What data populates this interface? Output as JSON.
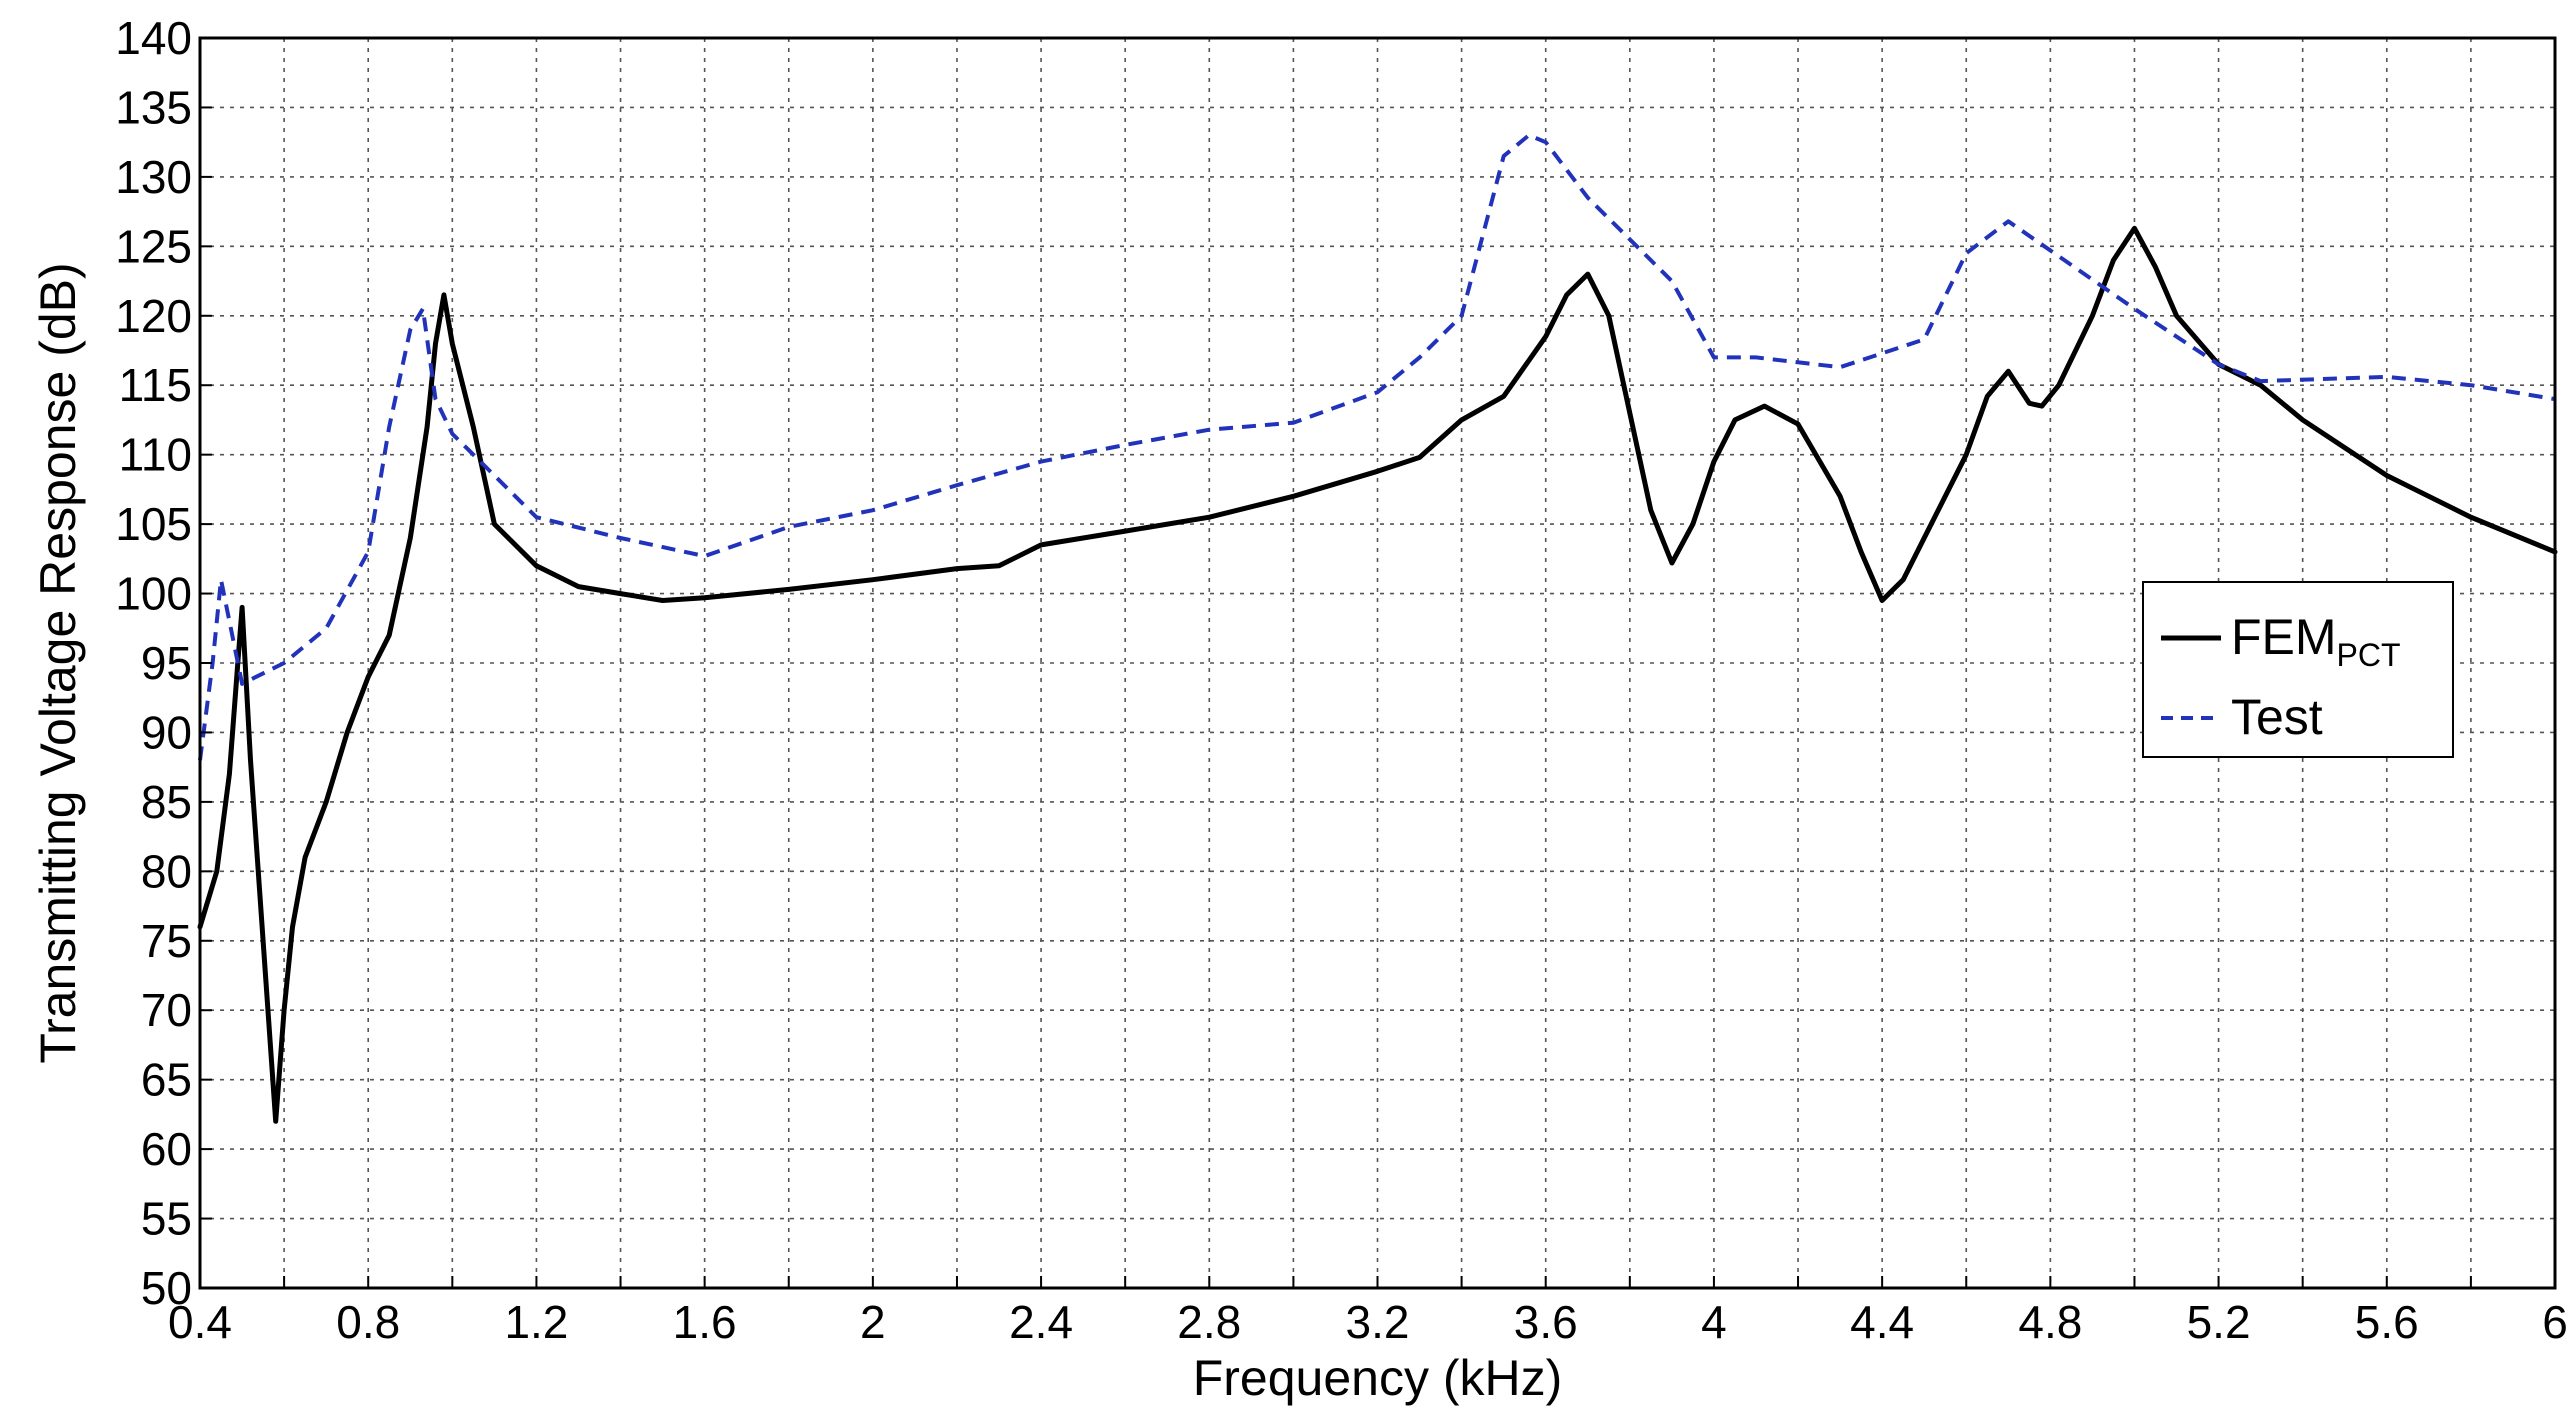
{
  "chart_data": {
    "type": "line",
    "title": "",
    "xlabel": "Frequency  (kHz)",
    "ylabel": "Transmitting Voltage Response  (dB)",
    "xlim": [
      0.4,
      6
    ],
    "ylim": [
      50,
      140
    ],
    "x_ticks": [
      0.4,
      0.8,
      1.2,
      1.6,
      2,
      2.4,
      2.8,
      3.2,
      3.6,
      4,
      4.4,
      4.8,
      5.2,
      5.6,
      6
    ],
    "x_tick_labels": [
      "0.4",
      "0.8",
      "1.2",
      "1.6",
      "2",
      "2.4",
      "2.8",
      "3.2",
      "3.6",
      "4",
      "4.4",
      "4.8",
      "5.2",
      "5.6",
      "6"
    ],
    "x_minor_step": 0.2,
    "y_ticks": [
      50,
      55,
      60,
      65,
      70,
      75,
      80,
      85,
      90,
      95,
      100,
      105,
      110,
      115,
      120,
      125,
      130,
      135,
      140
    ],
    "y_tick_labels": [
      "50",
      "55",
      "60",
      "65",
      "70",
      "75",
      "80",
      "85",
      "90",
      "95",
      "100",
      "105",
      "110",
      "115",
      "120",
      "125",
      "130",
      "135",
      "140"
    ],
    "grid": true,
    "legend_position": "right",
    "series": [
      {
        "name": "FEM",
        "name_subscript": "PCT",
        "color": "#000000",
        "style": "solid",
        "points": [
          [
            0.4,
            76
          ],
          [
            0.44,
            80
          ],
          [
            0.47,
            87
          ],
          [
            0.49,
            95
          ],
          [
            0.5,
            99
          ],
          [
            0.52,
            88
          ],
          [
            0.55,
            75
          ],
          [
            0.58,
            62
          ],
          [
            0.6,
            70
          ],
          [
            0.62,
            76
          ],
          [
            0.65,
            81
          ],
          [
            0.7,
            85
          ],
          [
            0.75,
            90
          ],
          [
            0.8,
            94
          ],
          [
            0.85,
            97
          ],
          [
            0.9,
            104
          ],
          [
            0.94,
            112
          ],
          [
            0.96,
            118
          ],
          [
            0.98,
            121.5
          ],
          [
            1.0,
            118
          ],
          [
            1.05,
            112
          ],
          [
            1.1,
            105
          ],
          [
            1.2,
            102
          ],
          [
            1.3,
            100.5
          ],
          [
            1.4,
            100
          ],
          [
            1.5,
            99.5
          ],
          [
            1.6,
            99.7
          ],
          [
            1.8,
            100.3
          ],
          [
            2.0,
            101
          ],
          [
            2.2,
            101.8
          ],
          [
            2.3,
            102
          ],
          [
            2.4,
            103.5
          ],
          [
            2.6,
            104.5
          ],
          [
            2.8,
            105.5
          ],
          [
            3.0,
            107
          ],
          [
            3.2,
            108.8
          ],
          [
            3.3,
            109.8
          ],
          [
            3.4,
            112.5
          ],
          [
            3.5,
            114.2
          ],
          [
            3.6,
            118.5
          ],
          [
            3.65,
            121.5
          ],
          [
            3.7,
            123
          ],
          [
            3.75,
            120
          ],
          [
            3.8,
            113
          ],
          [
            3.85,
            106
          ],
          [
            3.9,
            102.2
          ],
          [
            3.95,
            105
          ],
          [
            4.0,
            109.5
          ],
          [
            4.05,
            112.5
          ],
          [
            4.12,
            113.5
          ],
          [
            4.2,
            112.2
          ],
          [
            4.3,
            107
          ],
          [
            4.35,
            103
          ],
          [
            4.4,
            99.5
          ],
          [
            4.45,
            101
          ],
          [
            4.5,
            104
          ],
          [
            4.6,
            110
          ],
          [
            4.65,
            114.2
          ],
          [
            4.7,
            116
          ],
          [
            4.75,
            113.7
          ],
          [
            4.78,
            113.5
          ],
          [
            4.82,
            115
          ],
          [
            4.9,
            120
          ],
          [
            4.95,
            124
          ],
          [
            5.0,
            126.3
          ],
          [
            5.05,
            123.5
          ],
          [
            5.1,
            120
          ],
          [
            5.2,
            116.5
          ],
          [
            5.3,
            115
          ],
          [
            5.4,
            112.5
          ],
          [
            5.6,
            108.5
          ],
          [
            5.8,
            105.5
          ],
          [
            6.0,
            103
          ]
        ]
      },
      {
        "name": "Test",
        "color": "#2233bb",
        "style": "dashed",
        "points": [
          [
            0.4,
            88
          ],
          [
            0.43,
            95
          ],
          [
            0.45,
            101
          ],
          [
            0.5,
            93.5
          ],
          [
            0.6,
            95
          ],
          [
            0.7,
            97.5
          ],
          [
            0.8,
            103
          ],
          [
            0.85,
            112
          ],
          [
            0.9,
            119
          ],
          [
            0.93,
            120.5
          ],
          [
            0.96,
            114
          ],
          [
            1.0,
            111.5
          ],
          [
            1.1,
            108.5
          ],
          [
            1.2,
            105.5
          ],
          [
            1.4,
            104
          ],
          [
            1.6,
            102.7
          ],
          [
            1.8,
            104.8
          ],
          [
            2.0,
            106
          ],
          [
            2.2,
            107.8
          ],
          [
            2.4,
            109.5
          ],
          [
            2.6,
            110.7
          ],
          [
            2.8,
            111.8
          ],
          [
            3.0,
            112.3
          ],
          [
            3.2,
            114.5
          ],
          [
            3.3,
            117
          ],
          [
            3.4,
            120
          ],
          [
            3.5,
            131.5
          ],
          [
            3.56,
            133
          ],
          [
            3.6,
            132.5
          ],
          [
            3.7,
            128.5
          ],
          [
            3.9,
            122.5
          ],
          [
            4.0,
            117
          ],
          [
            4.1,
            117
          ],
          [
            4.3,
            116.3
          ],
          [
            4.5,
            118.3
          ],
          [
            4.6,
            124.5
          ],
          [
            4.7,
            126.8
          ],
          [
            4.8,
            124.7
          ],
          [
            5.0,
            120.5
          ],
          [
            5.2,
            116.5
          ],
          [
            5.3,
            115.3
          ],
          [
            5.6,
            115.6
          ],
          [
            5.8,
            115
          ],
          [
            6.0,
            114
          ]
        ]
      }
    ]
  }
}
